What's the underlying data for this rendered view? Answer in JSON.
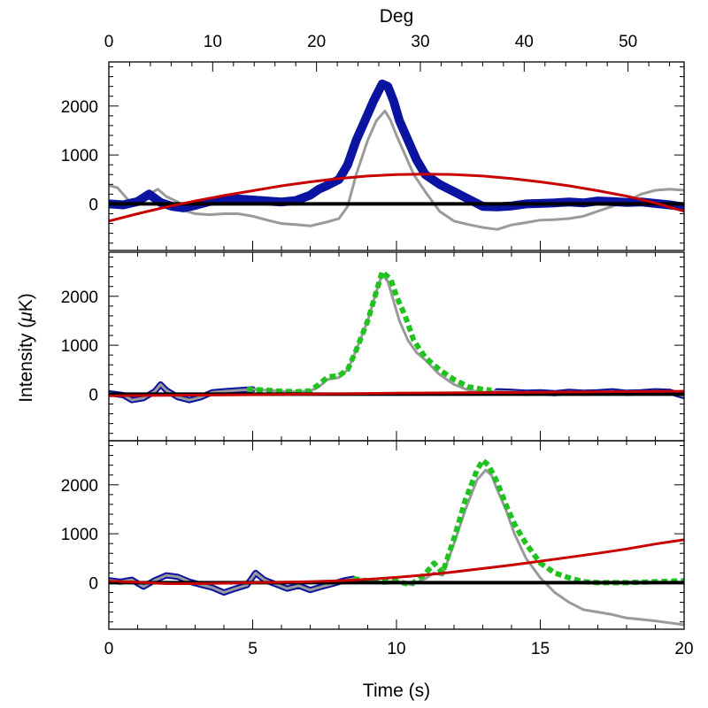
{
  "figure": {
    "top_axis_label": "Deg",
    "bottom_axis_label": "Time (s)",
    "y_axis_label_parts": [
      "Intensity (",
      "μ",
      "K)"
    ]
  },
  "colors": {
    "blue": "#0a14a0",
    "gray": "#9a9a9a",
    "red": "#c80000",
    "green": "#1fc21f",
    "black": "#000000"
  },
  "chart_data": [
    {
      "type": "line",
      "panel": "top",
      "xlim": [
        0,
        20
      ],
      "ylim": [
        -950,
        2900
      ],
      "x_ticks": [
        0,
        5,
        10,
        15,
        20
      ],
      "x_tick_labels": [
        "",
        "",
        "",
        "",
        ""
      ],
      "y_ticks": [
        0,
        1000,
        2000
      ],
      "y_tick_labels": [
        "0",
        "1000",
        "2000"
      ],
      "top_axis": {
        "xlim": [
          0,
          55.4
        ],
        "ticks": [
          0,
          10,
          20,
          30,
          40,
          50
        ],
        "tick_labels": [
          "0",
          "10",
          "20",
          "30",
          "40",
          "50"
        ]
      },
      "series": [
        {
          "color": "gray",
          "style": "solid",
          "width": 3,
          "x": [
            0,
            0.3,
            0.7,
            1,
            1.4,
            1.7,
            2,
            2.4,
            2.7,
            3,
            3.5,
            4,
            4.5,
            5,
            5.5,
            6,
            6.5,
            7,
            7.5,
            8,
            8.3,
            8.6,
            9,
            9.3,
            9.6,
            9.8,
            10,
            10.3,
            10.6,
            11,
            11.5,
            12,
            12.5,
            13,
            13.5,
            14,
            14.5,
            15,
            15.5,
            16,
            16.5,
            17,
            17.5,
            18,
            18.5,
            19,
            19.5,
            20
          ],
          "y": [
            380,
            330,
            60,
            100,
            200,
            300,
            150,
            40,
            -150,
            -200,
            -220,
            -200,
            -200,
            -250,
            -330,
            -400,
            -420,
            -450,
            -380,
            -300,
            -50,
            600,
            1300,
            1700,
            1900,
            1700,
            1400,
            1000,
            600,
            250,
            -150,
            -350,
            -420,
            -480,
            -520,
            -430,
            -380,
            -330,
            -320,
            -300,
            -250,
            -150,
            -50,
            50,
            200,
            280,
            300,
            280
          ]
        },
        {
          "color": "blue",
          "style": "solid",
          "width": 10,
          "x": [
            0,
            0.5,
            1,
            1.4,
            1.8,
            2.2,
            2.6,
            3,
            3.5,
            4,
            4.5,
            5,
            5.5,
            6,
            6.5,
            7,
            7.3,
            7.6,
            8,
            8.3,
            8.6,
            8.9,
            9.2,
            9.5,
            9.7,
            9.9,
            10.1,
            10.4,
            10.7,
            11,
            11.5,
            12,
            12.5,
            13,
            13.5,
            14,
            14.5,
            15,
            15.5,
            16,
            16.5,
            17,
            17.5,
            18,
            18.5,
            19,
            19.5,
            20
          ],
          "y": [
            0,
            -20,
            50,
            200,
            30,
            -50,
            -80,
            -30,
            50,
            80,
            100,
            80,
            60,
            40,
            70,
            180,
            300,
            380,
            500,
            800,
            1300,
            1700,
            2100,
            2450,
            2400,
            2100,
            1700,
            1300,
            900,
            600,
            400,
            250,
            100,
            -50,
            -60,
            -40,
            0,
            10,
            20,
            40,
            20,
            60,
            50,
            30,
            40,
            10,
            -20,
            -60
          ]
        },
        {
          "color": "black",
          "style": "solid",
          "width": 4,
          "x": [
            0,
            20
          ],
          "y": [
            0,
            0
          ]
        },
        {
          "color": "red",
          "style": "solid",
          "width": 3,
          "x": [
            0,
            1,
            2,
            3,
            4,
            5,
            6,
            7,
            8,
            9,
            10,
            11,
            12,
            13,
            14,
            15,
            16,
            17,
            18,
            19,
            20
          ],
          "y": [
            -350,
            -200,
            -60,
            60,
            170,
            270,
            370,
            450,
            520,
            570,
            600,
            610,
            600,
            570,
            520,
            450,
            370,
            270,
            160,
            20,
            -150
          ]
        }
      ]
    },
    {
      "type": "line",
      "panel": "middle",
      "xlim": [
        0,
        20
      ],
      "ylim": [
        -950,
        2900
      ],
      "x_ticks": [
        0,
        5,
        10,
        15,
        20
      ],
      "x_tick_labels": [
        "",
        "",
        "",
        "",
        ""
      ],
      "y_ticks": [
        0,
        1000,
        2000
      ],
      "y_tick_labels": [
        "0",
        "1000",
        "2000"
      ],
      "series": [
        {
          "color": "blue",
          "style": "solid",
          "width": 7,
          "x": [
            0,
            0.5,
            0.8,
            1.2,
            1.6,
            1.8,
            2,
            2.4,
            2.8,
            3.2,
            3.6,
            4,
            4.5,
            5
          ],
          "y": [
            20,
            -20,
            -120,
            -80,
            60,
            200,
            80,
            -60,
            -120,
            -60,
            40,
            60,
            80,
            100
          ]
        },
        {
          "color": "blue",
          "style": "solid",
          "width": 7,
          "x": [
            13.5,
            14,
            14.5,
            15,
            15.5,
            16,
            16.5,
            17,
            17.5,
            18,
            18.5,
            19,
            19.5,
            20
          ],
          "y": [
            60,
            50,
            30,
            40,
            20,
            50,
            30,
            40,
            60,
            30,
            40,
            60,
            50,
            -40
          ]
        },
        {
          "color": "gray",
          "style": "solid",
          "width": 3,
          "x": [
            0,
            0.5,
            0.8,
            1.2,
            1.6,
            1.8,
            2,
            2.4,
            2.8,
            3.2,
            3.6,
            4,
            4.5,
            5,
            5.5,
            6,
            6.5,
            7,
            7.3,
            7.6,
            8,
            8.3,
            8.6,
            9,
            9.3,
            9.5,
            9.7,
            9.9,
            10.1,
            10.4,
            10.7,
            11,
            11.5,
            12,
            12.5,
            13,
            13.5,
            14,
            14.5,
            15,
            15.5,
            16,
            16.5,
            17,
            17.5,
            18,
            18.5,
            19,
            19.5,
            20
          ],
          "y": [
            20,
            -20,
            -120,
            -80,
            60,
            200,
            80,
            -60,
            -120,
            -60,
            40,
            60,
            80,
            100,
            80,
            60,
            50,
            70,
            150,
            300,
            340,
            500,
            900,
            1500,
            2100,
            2450,
            2300,
            1900,
            1500,
            1100,
            850,
            700,
            400,
            200,
            80,
            40,
            60,
            50,
            30,
            40,
            20,
            50,
            30,
            40,
            60,
            30,
            40,
            60,
            50,
            -40
          ]
        },
        {
          "color": "green",
          "style": "dashed",
          "width": 6,
          "x": [
            4.8,
            5.5,
            6,
            6.5,
            7,
            7.3,
            7.6,
            8,
            8.3,
            8.6,
            9,
            9.3,
            9.5,
            9.8,
            10,
            10.3,
            10.6,
            11,
            11.5,
            12,
            12.5,
            13,
            13.3
          ],
          "y": [
            100,
            80,
            60,
            50,
            70,
            200,
            350,
            380,
            500,
            900,
            1500,
            2100,
            2500,
            2350,
            2000,
            1600,
            1100,
            750,
            500,
            300,
            150,
            100,
            80
          ]
        },
        {
          "color": "black",
          "style": "solid",
          "width": 4,
          "x": [
            0,
            20
          ],
          "y": [
            0,
            0
          ]
        },
        {
          "color": "red",
          "style": "solid",
          "width": 3,
          "x": [
            0,
            5,
            10,
            15,
            20
          ],
          "y": [
            -30,
            -10,
            20,
            40,
            60
          ]
        }
      ]
    },
    {
      "type": "line",
      "panel": "bottom",
      "xlim": [
        0,
        20
      ],
      "ylim": [
        -950,
        2900
      ],
      "x_ticks": [
        0,
        5,
        10,
        15,
        20
      ],
      "x_tick_labels": [
        "0",
        "5",
        "10",
        "15",
        "20"
      ],
      "y_ticks": [
        0,
        1000,
        2000
      ],
      "y_tick_labels": [
        "0",
        "1000",
        "2000"
      ],
      "series": [
        {
          "color": "blue",
          "style": "solid",
          "width": 7,
          "x": [
            0,
            0.4,
            0.8,
            1.2,
            1.6,
            2,
            2.4,
            2.8,
            3.2,
            3.6,
            4,
            4.4,
            4.8,
            5.1,
            5.4,
            5.8,
            6.2,
            6.6,
            7,
            7.4,
            7.8,
            8.2,
            8.5
          ],
          "y": [
            50,
            20,
            60,
            -80,
            50,
            150,
            120,
            20,
            -40,
            -100,
            -200,
            -120,
            -50,
            200,
            60,
            -30,
            -120,
            -60,
            -150,
            -80,
            -20,
            50,
            80
          ]
        },
        {
          "color": "gray",
          "style": "solid",
          "width": 3,
          "x": [
            0,
            0.4,
            0.8,
            1.2,
            1.6,
            2,
            2.4,
            2.8,
            3.2,
            3.6,
            4,
            4.4,
            4.8,
            5.1,
            5.4,
            5.8,
            6.2,
            6.6,
            7,
            7.4,
            7.8,
            8.2,
            8.5,
            9,
            9.5,
            10,
            10.5,
            11,
            11.3,
            11.6,
            12,
            12.4,
            12.8,
            13.1,
            13.3,
            13.5,
            13.8,
            14.1,
            14.5,
            15,
            15.5,
            16,
            16.5,
            17,
            17.5,
            18,
            18.5,
            19,
            19.5,
            20
          ],
          "y": [
            50,
            20,
            60,
            -80,
            50,
            150,
            120,
            20,
            -40,
            -100,
            -200,
            -120,
            -50,
            200,
            60,
            -30,
            -120,
            -60,
            -150,
            -80,
            -20,
            50,
            80,
            40,
            10,
            30,
            -40,
            80,
            200,
            150,
            800,
            1500,
            2100,
            2300,
            2200,
            1900,
            1500,
            1000,
            500,
            100,
            -200,
            -400,
            -550,
            -600,
            -650,
            -720,
            -750,
            -780,
            -820,
            -860
          ]
        },
        {
          "color": "green",
          "style": "dashed",
          "width": 6,
          "x": [
            8.5,
            9,
            9.5,
            10,
            10.5,
            11,
            11.3,
            11.6,
            12,
            12.4,
            12.8,
            13,
            13.2,
            13.5,
            13.8,
            14.1,
            14.5,
            15,
            15.5,
            16,
            16.5,
            17,
            18,
            19,
            20
          ],
          "y": [
            80,
            40,
            10,
            30,
            -40,
            180,
            400,
            200,
            900,
            1700,
            2300,
            2500,
            2400,
            2050,
            1600,
            1200,
            800,
            400,
            200,
            100,
            20,
            0,
            0,
            20,
            40
          ]
        },
        {
          "color": "black",
          "style": "solid",
          "width": 4,
          "x": [
            0,
            20
          ],
          "y": [
            0,
            0
          ]
        },
        {
          "color": "red",
          "style": "solid",
          "width": 3,
          "x": [
            0,
            1,
            2,
            3,
            4,
            5,
            6,
            7,
            8,
            9,
            10,
            11,
            12,
            13,
            14,
            15,
            16,
            17,
            18,
            19,
            20
          ],
          "y": [
            30,
            10,
            -20,
            -20,
            -10,
            0,
            10,
            20,
            40,
            70,
            110,
            160,
            220,
            290,
            360,
            440,
            520,
            600,
            690,
            790,
            880
          ]
        }
      ]
    }
  ]
}
